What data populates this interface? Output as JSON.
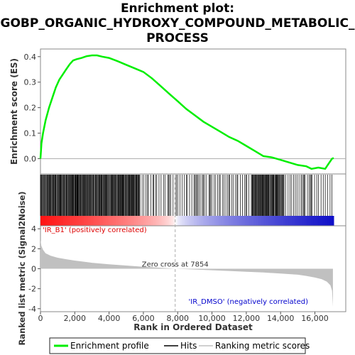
{
  "chart_data": {
    "type": "line",
    "title": [
      "Enrichment plot:",
      "GOBP_ORGANIC_HYDROXY_COMPOUND_METABOLIC_",
      "PROCESS"
    ],
    "top_panel": {
      "ylabel": "Enrichment score (ES)",
      "ylim": [
        -0.06,
        0.43
      ],
      "yticks": [
        0.0,
        0.1,
        0.2,
        0.3,
        0.4
      ],
      "ytick_labels": [
        "0.0",
        "0.1",
        "0.2",
        "0.3",
        "0.4"
      ],
      "series": [
        {
          "name": "Enrichment profile",
          "color": "#00ee00",
          "x": [
            0,
            60,
            150,
            300,
            500,
            700,
            900,
            1100,
            1300,
            1500,
            1700,
            1900,
            2100,
            2400,
            2700,
            3000,
            3300,
            3600,
            4000,
            4500,
            5000,
            5500,
            6000,
            6500,
            7000,
            7500,
            8000,
            8500,
            9000,
            9500,
            10000,
            10500,
            11000,
            11500,
            12000,
            12500,
            13000,
            13500,
            14000,
            14500,
            15000,
            15500,
            15800,
            16200,
            16600,
            16800,
            17000,
            17100
          ],
          "values": [
            0.0,
            0.06,
            0.1,
            0.15,
            0.2,
            0.24,
            0.28,
            0.31,
            0.33,
            0.35,
            0.37,
            0.385,
            0.39,
            0.395,
            0.402,
            0.405,
            0.405,
            0.4,
            0.395,
            0.382,
            0.368,
            0.354,
            0.34,
            0.315,
            0.285,
            0.255,
            0.225,
            0.195,
            0.17,
            0.145,
            0.125,
            0.105,
            0.085,
            0.07,
            0.05,
            0.03,
            0.01,
            0.005,
            -0.005,
            -0.015,
            -0.025,
            -0.03,
            -0.04,
            -0.035,
            -0.04,
            -0.02,
            0.0,
            0.002
          ]
        }
      ]
    },
    "hits_panel": {
      "legend_name": "Hits",
      "dense_ranges": [
        [
          0,
          5800
        ],
        [
          12300,
          14200
        ]
      ],
      "sparse_ranges": [
        [
          5800,
          12300
        ],
        [
          14200,
          17050
        ]
      ]
    },
    "bottom_panel": {
      "ylabel": "Ranked list metric (Signal2Noise)",
      "ylim": [
        -4.3,
        4.3
      ],
      "yticks": [
        -4,
        -2,
        0,
        2,
        4
      ],
      "ytick_labels": [
        "-4",
        "-2",
        "0",
        "2",
        "4"
      ],
      "series": [
        {
          "name": "Ranking metric scores",
          "color": "#c0c0c0",
          "x": [
            0,
            50,
            150,
            300,
            600,
            1000,
            1500,
            2000,
            3000,
            4000,
            5000,
            6000,
            7000,
            7854,
            9000,
            10000,
            11000,
            12000,
            13000,
            14000,
            15000,
            15500,
            16000,
            16400,
            16700,
            16900,
            17000,
            17050
          ],
          "values": [
            2.9,
            2.3,
            1.9,
            1.55,
            1.3,
            1.1,
            0.95,
            0.82,
            0.6,
            0.45,
            0.32,
            0.2,
            0.1,
            0.0,
            -0.08,
            -0.15,
            -0.22,
            -0.3,
            -0.38,
            -0.48,
            -0.6,
            -0.72,
            -0.88,
            -1.05,
            -1.3,
            -1.65,
            -2.2,
            -3.8
          ]
        }
      ],
      "zero_cross_label": "Zero cross at 7854",
      "zero_cross": 7854,
      "positive_label": "'IR_B1' (positively correlated)",
      "negative_label": "'IR_DMSO' (negatively correlated)"
    },
    "xlabel": "Rank in Ordered Dataset",
    "xlim": [
      0,
      17800
    ],
    "xticks": [
      0,
      2000,
      4000,
      6000,
      8000,
      10000,
      12000,
      14000,
      16000
    ],
    "xtick_labels": [
      "0",
      "2,000",
      "4,000",
      "6,000",
      "8,000",
      "10,000",
      "12,000",
      "14,000",
      "16,000"
    ],
    "n_genes": 17050,
    "legend": {
      "placement": "bottom",
      "entries": [
        "Enrichment profile",
        "Hits",
        "Ranking metric scores"
      ]
    },
    "colors": {
      "profile": "#00ee00",
      "hits": "#000000",
      "metric": "#c0c0c0",
      "positive": "#dd0000",
      "negative": "#0000cc",
      "zero_line": "#aaaaaa"
    }
  }
}
